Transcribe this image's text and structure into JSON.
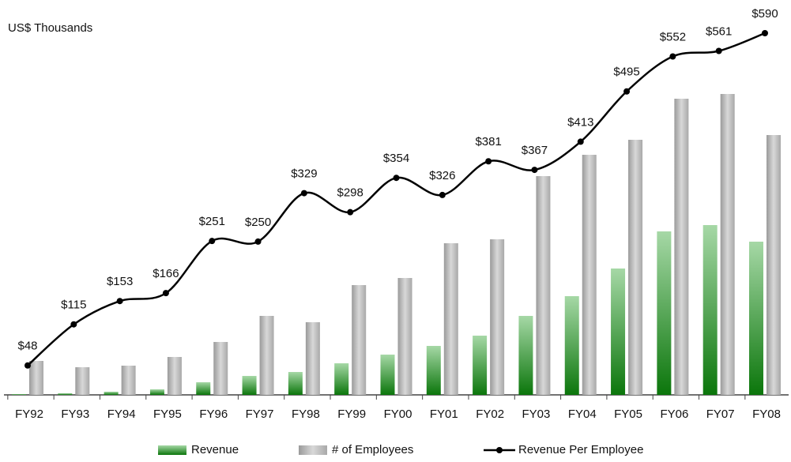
{
  "chart_data": {
    "type": "bar-line combo",
    "title": "US$ Thousands",
    "categories": [
      "FY92",
      "FY93",
      "FY94",
      "FY95",
      "FY96",
      "FY97",
      "FY98",
      "FY99",
      "FY00",
      "FY01",
      "FY02",
      "FY03",
      "FY04",
      "FY05",
      "FY06",
      "FY07",
      "FY08"
    ],
    "series": [
      {
        "name": "Revenue",
        "type": "bar",
        "axis": "y2",
        "color": "#1f8a1f",
        "values": [
          1,
          2,
          4,
          7,
          16,
          24,
          29,
          40,
          51,
          62,
          75,
          100,
          125,
          160,
          207,
          215,
          194
        ]
      },
      {
        "name": "# of Employees",
        "type": "bar",
        "axis": "y2",
        "color": "#b0b0b0",
        "values": [
          43,
          35,
          37,
          48,
          67,
          100,
          92,
          139,
          148,
          192,
          197,
          277,
          304,
          323,
          375,
          381,
          329
        ]
      },
      {
        "name": "Revenue Per Employee",
        "type": "line",
        "axis": "y",
        "color": "#000000",
        "values": [
          48,
          115,
          153,
          166,
          251,
          250,
          329,
          298,
          354,
          326,
          381,
          367,
          413,
          495,
          552,
          561,
          590
        ],
        "value_labels": [
          "$48",
          "$115",
          "$153",
          "$166",
          "$251",
          "$250",
          "$329",
          "$298",
          "$354",
          "$326",
          "$381",
          "$367",
          "$413",
          "$495",
          "$552",
          "$561",
          "$590"
        ]
      }
    ],
    "ylim": [
      0,
      590
    ],
    "y2lim": [
      0,
      458
    ],
    "legend": "bottom"
  }
}
